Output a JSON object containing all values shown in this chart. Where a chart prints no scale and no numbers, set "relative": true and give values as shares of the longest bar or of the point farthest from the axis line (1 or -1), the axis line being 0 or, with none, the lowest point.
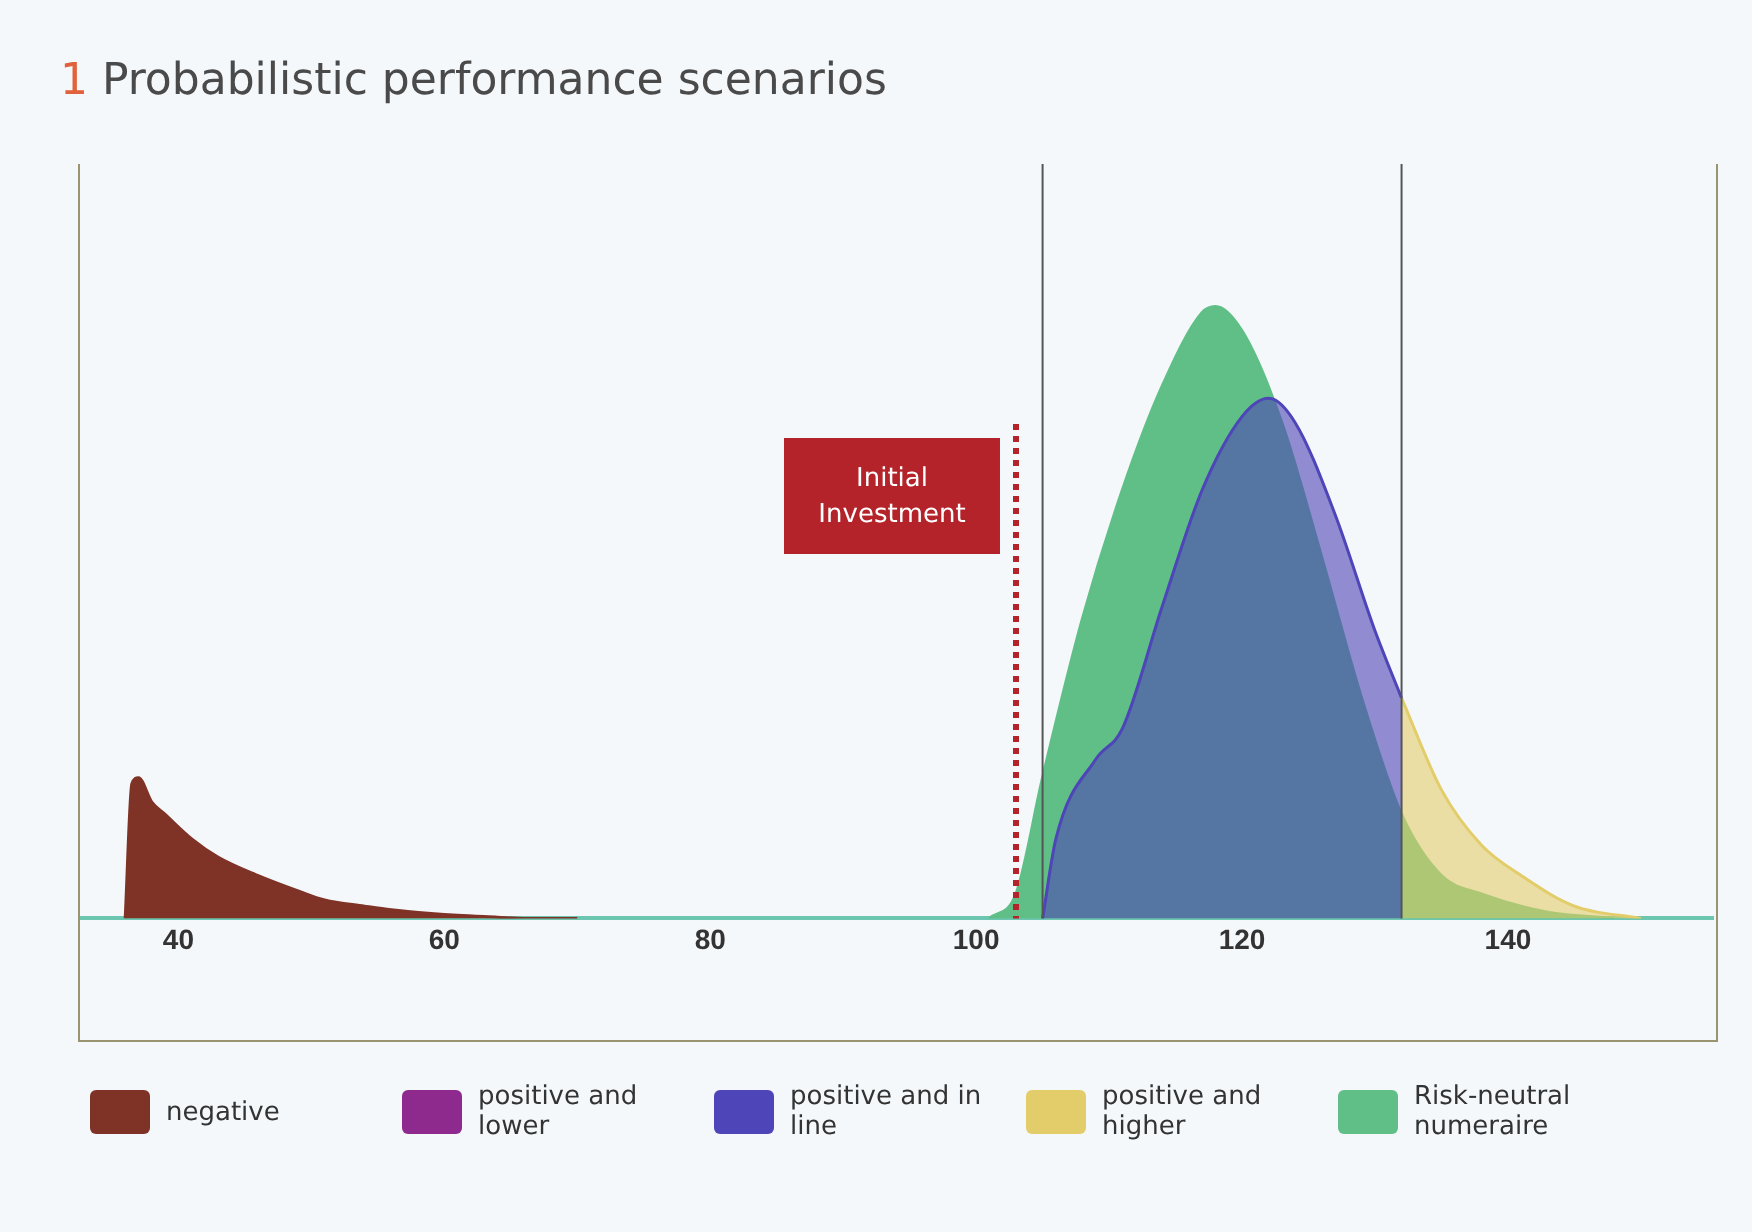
{
  "chart_data": {
    "type": "area",
    "title": "1 Probabilistic performance scenarios",
    "relative": true,
    "xlim": [
      32.6,
      155.5
    ],
    "xticks": [
      40,
      60,
      80,
      100,
      120,
      140
    ],
    "grid": false,
    "legend": "bottom",
    "series": [
      {
        "name": "negative",
        "color": "#7f3327",
        "x": [
          36,
          36.5,
          37,
          38,
          39,
          41,
          43,
          46,
          49,
          51,
          54,
          56,
          59,
          61,
          64,
          66,
          70
        ],
        "values": [
          0,
          0.22,
          0.23,
          0.19,
          0.17,
          0.13,
          0.1,
          0.07,
          0.045,
          0.03,
          0.02,
          0.014,
          0.008,
          0.005,
          0.002,
          0,
          0
        ]
      },
      {
        "name": "Risk-neutral numeraire",
        "color": "#5fbf86",
        "x": [
          101,
          103,
          105,
          108,
          111,
          114,
          117,
          118,
          120,
          123,
          126,
          129,
          132,
          135,
          138,
          143,
          148
        ],
        "values": [
          0,
          0.04,
          0.23,
          0.49,
          0.7,
          0.87,
          0.99,
          1,
          0.96,
          0.81,
          0.59,
          0.36,
          0.17,
          0.07,
          0.04,
          0.01,
          0
        ]
      },
      {
        "name": "positive and in line",
        "color": "#4e45b8",
        "x": [
          105,
          106,
          109,
          111,
          114,
          117,
          120,
          122,
          124,
          127,
          130,
          132
        ],
        "values": [
          0,
          0.13,
          0.26,
          0.31,
          0.51,
          0.7,
          0.82,
          0.85,
          0.81,
          0.66,
          0.47,
          0.36
        ]
      },
      {
        "name": "positive and higher",
        "color": "#e2cd6a",
        "x": [
          132,
          135,
          138,
          141,
          145,
          150
        ],
        "values": [
          0.36,
          0.21,
          0.12,
          0.07,
          0.02,
          0
        ]
      }
    ],
    "annotations": [
      "positive and lower"
    ],
    "ref_lines": [
      {
        "axis": "x",
        "value": 105,
        "color": "#555555"
      },
      {
        "axis": "x",
        "value": 132,
        "color": "#555555"
      },
      {
        "axis": "x",
        "value": 103,
        "label": "Initial Investment",
        "color": "#b5232a",
        "line_style": "dotted"
      }
    ]
  }
}
